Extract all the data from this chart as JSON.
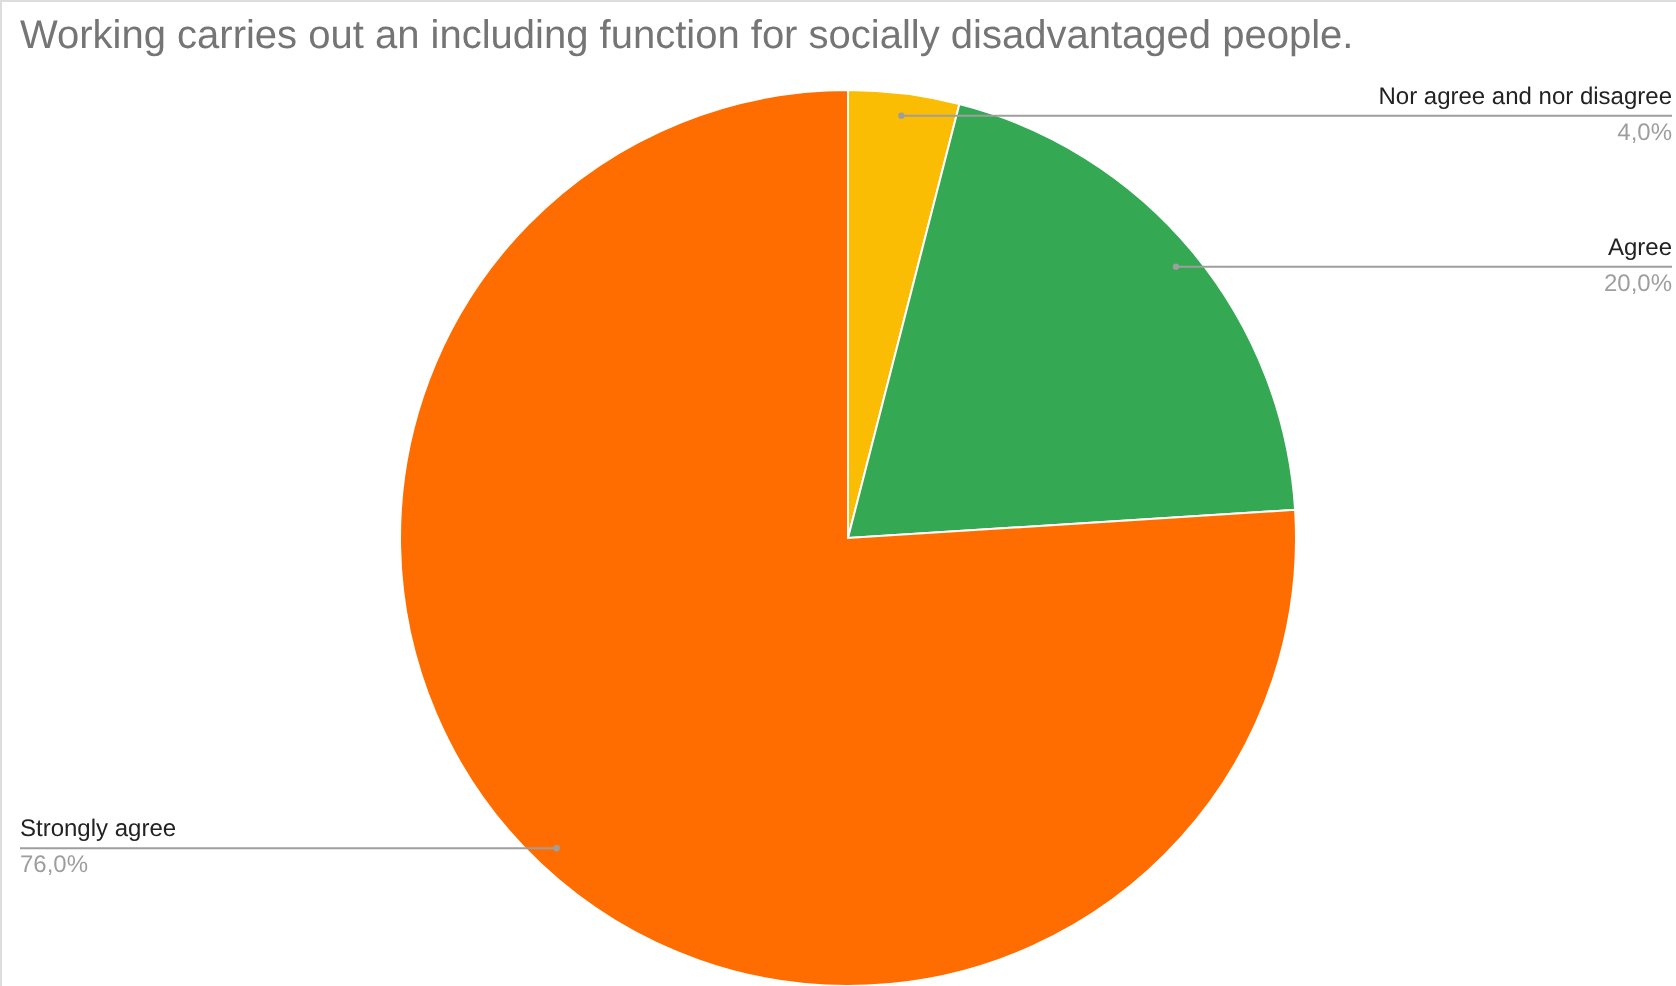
{
  "chart_data": {
    "type": "pie",
    "title": "Working carries out an including function for socially disadvantaged people.",
    "categories": [
      "Nor agree and nor disagree",
      "Agree",
      "Strongly agree"
    ],
    "values": [
      4,
      20,
      76
    ],
    "colors": [
      "#fbbc04",
      "#34a853",
      "#ff6d01"
    ],
    "value_labels": [
      "4,0%",
      "20,0%",
      "76,0%"
    ]
  }
}
